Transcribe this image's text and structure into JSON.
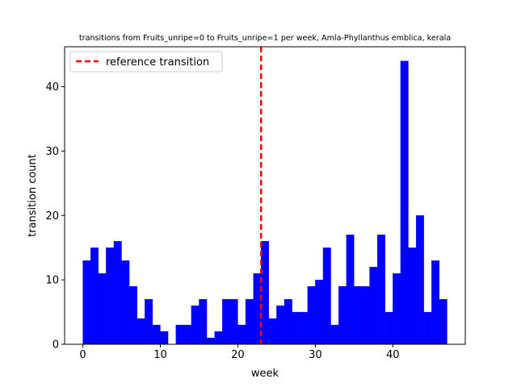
{
  "chart_data": {
    "type": "bar",
    "title": "transitions from Fruits_unripe=0 to Fruits_unripe=1 per week, Amla-Phyllanthus emblica, kerala",
    "xlabel": "week",
    "ylabel": "transition count",
    "xlim": [
      -2.35,
      49.35
    ],
    "ylim": [
      0,
      46.2
    ],
    "xticks": [
      0,
      10,
      20,
      30,
      40
    ],
    "yticks": [
      0,
      10,
      20,
      30,
      40
    ],
    "bar_width": 1,
    "bar_color": "#0000ff",
    "weeks": [
      0,
      1,
      2,
      3,
      4,
      5,
      6,
      7,
      8,
      9,
      10,
      11,
      12,
      13,
      14,
      15,
      16,
      17,
      18,
      19,
      20,
      21,
      22,
      23,
      24,
      25,
      26,
      27,
      28,
      29,
      30,
      31,
      32,
      33,
      34,
      35,
      36,
      37,
      38,
      39,
      40,
      41,
      42,
      43,
      44,
      45,
      46
    ],
    "values": [
      13,
      15,
      11,
      15,
      16,
      13,
      9,
      4,
      7,
      3,
      2,
      0,
      3,
      3,
      6,
      7,
      1,
      2,
      7,
      7,
      3,
      7,
      11,
      16,
      4,
      6,
      7,
      5,
      5,
      9,
      10,
      15,
      3,
      9,
      17,
      9,
      9,
      12,
      17,
      5,
      11,
      44,
      15,
      20,
      5,
      13,
      7
    ],
    "reference_line": {
      "x": 23,
      "label": "reference transition",
      "color": "#ff0000",
      "style": "dashed"
    },
    "legend_position": "top-left",
    "grid": false
  }
}
